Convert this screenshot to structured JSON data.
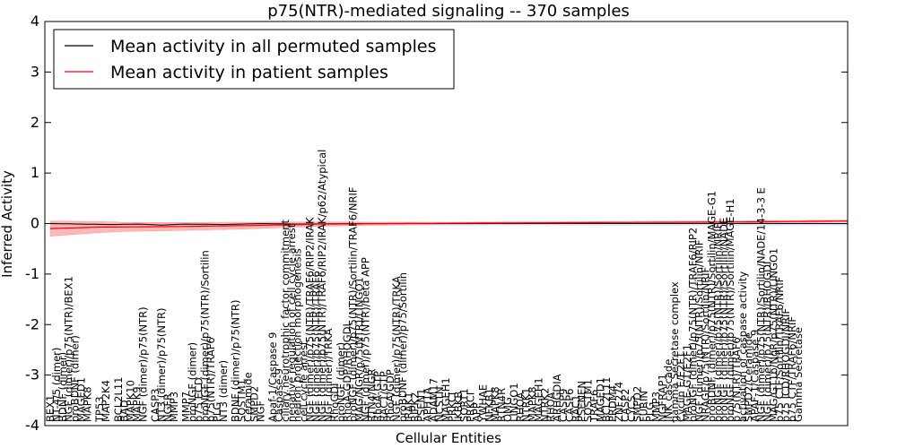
{
  "chart_data": {
    "type": "line",
    "title": "p75(NTR)-mediated signaling -- 370 samples",
    "xlabel": "Cellular Entities",
    "ylabel": "Inferred Activity",
    "ylim": [
      -4,
      4
    ],
    "yticks": [
      -4,
      -3,
      -2,
      -1,
      0,
      1,
      2,
      3,
      4
    ],
    "legend": {
      "placement": "top-left",
      "entries": [
        {
          "label": "Mean activity in all permuted samples",
          "color": "#000000"
        },
        {
          "label": "Mean activity in patient samples",
          "color": "#ff0000"
        }
      ]
    },
    "band_color": "#ff9999",
    "permuted_band_color": "#aaaaff",
    "n_points": 130,
    "patient_mean_keypoints": [
      [
        0,
        -0.1
      ],
      [
        8,
        -0.07
      ],
      [
        20,
        -0.06
      ],
      [
        32,
        -0.04
      ],
      [
        44,
        -0.01
      ],
      [
        56,
        0.0
      ],
      [
        70,
        0.01
      ],
      [
        90,
        0.02
      ],
      [
        110,
        0.03
      ],
      [
        129,
        0.05
      ]
    ],
    "patient_std_keypoints": [
      [
        0,
        0.15
      ],
      [
        6,
        0.12
      ],
      [
        12,
        0.09
      ],
      [
        20,
        0.08
      ],
      [
        30,
        0.07
      ],
      [
        40,
        0.05
      ],
      [
        52,
        0.03
      ],
      [
        64,
        0.02
      ],
      [
        100,
        0.02
      ],
      [
        129,
        0.02
      ]
    ],
    "permuted_mean_keypoints": [
      [
        0,
        0.0
      ],
      [
        5,
        -0.01
      ],
      [
        10,
        -0.02
      ],
      [
        14,
        -0.01
      ],
      [
        18,
        -0.03
      ],
      [
        22,
        -0.01
      ],
      [
        28,
        -0.02
      ],
      [
        34,
        0.0
      ],
      [
        40,
        -0.01
      ],
      [
        48,
        0.0
      ],
      [
        60,
        0.0
      ],
      [
        129,
        0.0
      ]
    ],
    "entity_labels": [
      {
        "i": 0,
        "text": "BEX1"
      },
      {
        "i": 1,
        "text": "NT-4/5 (dimer)"
      },
      {
        "i": 2,
        "text": "BDNF (dimer)"
      },
      {
        "i": 3,
        "text": "NGF (dimer)/p75(NTR)/BEX1"
      },
      {
        "i": 4,
        "text": "proBDNF (dimer)"
      },
      {
        "i": 5,
        "text": "MAGED1"
      },
      {
        "i": 6,
        "text": "MAPK8"
      },
      {
        "i": 8,
        "text": "TP53"
      },
      {
        "i": 9,
        "text": "MAP2K4"
      },
      {
        "i": 11,
        "text": "BCL2L11"
      },
      {
        "i": 12,
        "text": "BAD"
      },
      {
        "i": 13,
        "text": "MAPK10"
      },
      {
        "i": 14,
        "text": "MAPK9"
      },
      {
        "i": 15,
        "text": "NGF (dimer)/p75(NTR)"
      },
      {
        "i": 17,
        "text": "CASP3"
      },
      {
        "i": 18,
        "text": "NT3 (dimer)/p75(NTR)"
      },
      {
        "i": 19,
        "text": "NGFR"
      },
      {
        "i": 20,
        "text": "MMP3"
      },
      {
        "i": 22,
        "text": "MMP7"
      },
      {
        "i": 23,
        "text": "proNGF (dimer)"
      },
      {
        "i": 24,
        "text": "p75 ECD"
      },
      {
        "i": 25,
        "text": "proNGF (dimer)/p75(NTR)/Sortilin"
      },
      {
        "i": 26,
        "text": "p75(NTR)/TRAF6"
      },
      {
        "i": 27,
        "text": "PLG"
      },
      {
        "i": 28,
        "text": "NT3 (dimer)"
      },
      {
        "i": 30,
        "text": "BDNF (dimer)/p75(NTR)"
      },
      {
        "i": 31,
        "text": "SQSTM1"
      },
      {
        "i": 32,
        "text": "Ceramide"
      },
      {
        "i": 33,
        "text": "SMPD2"
      },
      {
        "i": 34,
        "text": "NGF"
      },
      {
        "i": 36,
        "text": "Apaf-1/Caspase 9"
      },
      {
        "i": 37,
        "text": "Caspase-9"
      },
      {
        "i": 38,
        "text": "ciliary neurotrophic factor commitment"
      },
      {
        "i": 39,
        "text": "negative regulation of cell cycle arrest"
      },
      {
        "i": 40,
        "text": "neuron projection morphogenesis"
      },
      {
        "i": 41,
        "text": "cell cycle arrest"
      },
      {
        "i": 42,
        "text": "NGF (dimer)/p75(NTR)/TRAF6/RIP2/IRAK"
      },
      {
        "i": 43,
        "text": "NGF (dimer)/p75(NTR)/TRAF6"
      },
      {
        "i": 44,
        "text": "NGF (dimer)/p75(NTR)/TRAF6/RIP2/IRAK/p62/Atypical"
      },
      {
        "i": 45,
        "text": "NGF (dimer)/TRKA"
      },
      {
        "i": 46,
        "text": "RhoGDI"
      },
      {
        "i": 47,
        "text": "proNGF (dimer)"
      },
      {
        "i": 48,
        "text": "RhoA-GDP/RHOGDI"
      },
      {
        "i": 49,
        "text": "proNGF (dimer)/p75(NTR)/Sortilin/TRAF6/NRIF"
      },
      {
        "i": 50,
        "text": "MAG/NGR/p75(NTR)/LINGO1"
      },
      {
        "i": 51,
        "text": "NGF (dimer)/p75(NTR)/beta APP"
      },
      {
        "i": 52,
        "text": "RTN4/NGR"
      },
      {
        "i": 53,
        "text": "RhoA-GTP"
      },
      {
        "i": 54,
        "text": "RAC1/GTP"
      },
      {
        "i": 55,
        "text": "RhoA/GDP"
      },
      {
        "i": 56,
        "text": "NGF (dimer)/p75(NTR)/TRKA"
      },
      {
        "i": 57,
        "text": "proBDNF (dimer)/p75/Sortilin"
      },
      {
        "i": 58,
        "text": "IRAK1"
      },
      {
        "i": 59,
        "text": "RIPK2"
      },
      {
        "i": 60,
        "text": "PSEN1"
      },
      {
        "i": 61,
        "text": "APH1A"
      },
      {
        "i": 62,
        "text": "ADAM17"
      },
      {
        "i": 63,
        "text": "NCSTN"
      },
      {
        "i": 64,
        "text": "MAGEH1"
      },
      {
        "i": 65,
        "text": "PRKCI"
      },
      {
        "i": 66,
        "text": "IKBKB"
      },
      {
        "i": 67,
        "text": "SORT1"
      },
      {
        "i": 68,
        "text": "PRKCI"
      },
      {
        "i": 69,
        "text": "APP"
      },
      {
        "i": 70,
        "text": "YWHAE"
      },
      {
        "i": 71,
        "text": "NFKB1"
      },
      {
        "i": 72,
        "text": "MAPK8"
      },
      {
        "i": 73,
        "text": "RTN4R"
      },
      {
        "i": 74,
        "text": "OMG"
      },
      {
        "i": 75,
        "text": "LINGO1"
      },
      {
        "i": 76,
        "text": "RHOA"
      },
      {
        "i": 77,
        "text": "NTRK1"
      },
      {
        "i": 78,
        "text": "MAPK8"
      },
      {
        "i": 79,
        "text": "MAGEH1"
      },
      {
        "i": 80,
        "text": "NTRK2"
      },
      {
        "i": 81,
        "text": "RHOA"
      },
      {
        "i": 82,
        "text": "ARHGDIA"
      },
      {
        "i": 83,
        "text": "CASP9"
      },
      {
        "i": 84,
        "text": "CASP6"
      },
      {
        "i": 85,
        "text": "RAC1"
      },
      {
        "i": 86,
        "text": "PSENEN"
      },
      {
        "i": 87,
        "text": "SQSTM1"
      },
      {
        "i": 88,
        "text": "TRAF6"
      },
      {
        "i": 89,
        "text": "MAGED1"
      },
      {
        "i": 90,
        "text": "BCL2L11"
      },
      {
        "i": 91,
        "text": "PRDM4"
      },
      {
        "i": 92,
        "text": "ZNF274"
      },
      {
        "i": 93,
        "text": "CASP2"
      },
      {
        "i": 94,
        "text": "CYCS"
      },
      {
        "i": 95,
        "text": "SMPD2"
      },
      {
        "i": 96,
        "text": "FURIN"
      },
      {
        "i": 97,
        "text": "PLG"
      },
      {
        "i": 98,
        "text": "MMP3"
      },
      {
        "i": 99,
        "text": "NGFRAP1"
      },
      {
        "i": 100,
        "text": "JNK cascade"
      },
      {
        "i": 101,
        "text": "gamma Secretase complex"
      },
      {
        "i": 102,
        "text": "Cyclin E/E2F1"
      },
      {
        "i": 103,
        "text": "MAGE-G1/E2F1"
      },
      {
        "i": 104,
        "text": "proNGF (dimer)/p75(NTR)/TRAF6/RIP2"
      },
      {
        "i": 105,
        "text": "NGF (dimer)/p75(NTR)/Sortilin/NRIF"
      },
      {
        "i": 106,
        "text": "NRAGE/p75(NTR)/Sortilin/NRIF"
      },
      {
        "i": 107,
        "text": "proBDNF (dimer)/p75(NTR)/Sortilin/MAGE-G1"
      },
      {
        "i": 108,
        "text": "proNGF (dimer)/p75(NTR)/Sortilin/NRIF"
      },
      {
        "i": 109,
        "text": "proNGF (dimer)/p75(NTR)/Sortilin/NADE"
      },
      {
        "i": 110,
        "text": "proNGF (dimer)/p75(NTR)/Sortilin/MAGE-H1"
      },
      {
        "i": 111,
        "text": "p75(NTR)/TRAF6"
      },
      {
        "i": 112,
        "text": "activation of caspase activity"
      },
      {
        "i": 113,
        "text": "SMPD2/Ceramide"
      },
      {
        "i": 114,
        "text": "APAF-1/Caspase 9"
      },
      {
        "i": 115,
        "text": "NGF (dimer)/p75(NTR)/Sortilin/NADE/14-3-3 E"
      },
      {
        "i": 116,
        "text": "NGF (dimer)/p75(NTR)/RHOGDI"
      },
      {
        "i": 117,
        "text": "MAG/GT1b/NgR/p75(NTR)/LINGO1"
      },
      {
        "i": 118,
        "text": "p75 CTF/Sortilin/TRAF6/NRIF"
      },
      {
        "i": 119,
        "text": "p75 ICD/RHOGDI/NRIF"
      },
      {
        "i": 120,
        "text": "p75 CTF/TRAF6/NRIF"
      },
      {
        "i": 121,
        "text": "Gamma Secretase"
      }
    ]
  }
}
